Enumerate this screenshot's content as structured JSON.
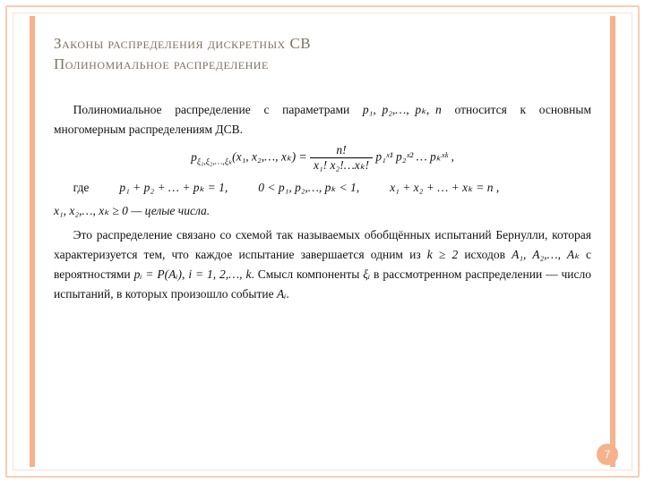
{
  "title_line1": "Законы распределения дискретных СВ",
  "title_line2": "Полиномиальное распределение",
  "para1_a": "Полиномиальное распределение с параметрами ",
  "para1_params": "p₁, p₂,…, pₖ, n",
  "para1_b": " относится к основным многомерным распределениям ДСВ.",
  "formula_lhs": "p",
  "formula_lhs_sub": "ξ₁,ξ₂,…,ξₖ",
  "formula_args": "(x₁, x₂,…, xₖ) = ",
  "frac_num": "n!",
  "frac_den": "x₁! x₂!…xₖ!",
  "formula_rhs": " p₁ˣ¹ p₂ˣ² … pₖˣᵏ ,",
  "cond_label": "где",
  "cond1": "p₁ + p₂ + … + pₖ = 1,",
  "cond2": "0 < p₁, p₂,…, pₖ < 1,",
  "cond3": "x₁ + x₂ + … + xₖ = n ,",
  "cond4": "x₁, x₂,…, xₖ ≥ 0  — целые числа.",
  "para2_a": "Это распределение связано со схемой так называемых обобщённых испытаний Бернулли, которая характеризуется тем, что каждое испытание завершается одним из ",
  "para2_m1": "k ≥ 2",
  "para2_b": " исходов ",
  "para2_m2": "A₁, A₂,…, Aₖ",
  "para2_c": " с вероятностями ",
  "para2_m3": "pᵢ = P(Aᵢ)",
  "para2_d": ", ",
  "para2_m4": "i = 1, 2,…, k",
  "para2_e": ". Смысл компоненты ",
  "para2_m5": "ξᵢ",
  "para2_f": " в рассмотренном распределении — число испытаний, в которых произошло событие ",
  "para2_m6": "Aᵢ",
  "para2_g": ".",
  "page_number": "7",
  "colors": {
    "accent": "#f6b28b",
    "border_outer": "#f9cdb3",
    "border_inner": "#fce1d2",
    "title_text": "#7d7262",
    "body_text": "#111111",
    "background": "#ffffff"
  }
}
